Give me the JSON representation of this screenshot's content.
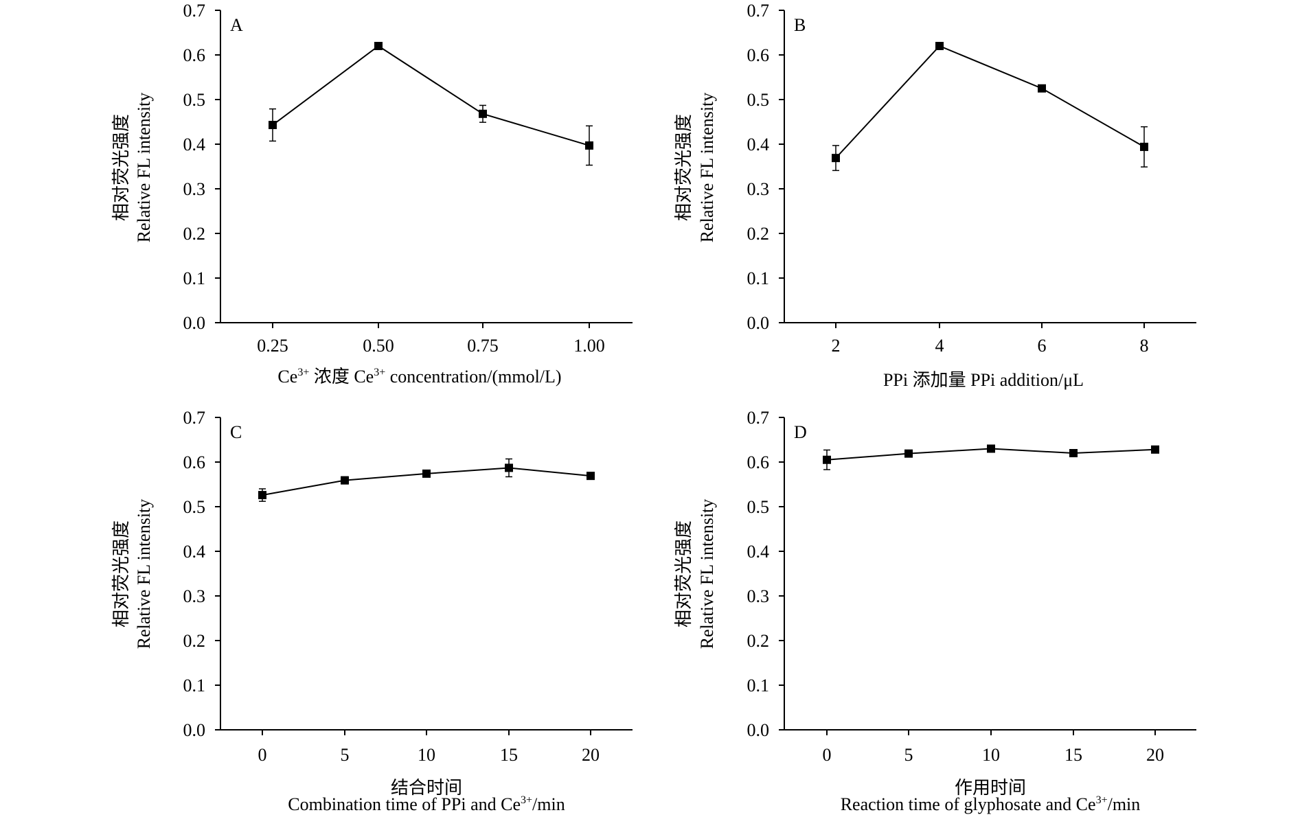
{
  "chart_data": [
    {
      "type": "line",
      "panel": "A",
      "categories": [
        "0.25",
        "0.50",
        "0.75",
        "1.00"
      ],
      "x": [
        0.25,
        0.5,
        0.75,
        1.0
      ],
      "values": [
        0.443,
        0.62,
        0.468,
        0.397
      ],
      "error": [
        0.036,
        0.0,
        0.019,
        0.044
      ],
      "ylim": [
        0,
        0.7
      ],
      "yticks": [
        "0.0",
        "0.1",
        "0.2",
        "0.3",
        "0.4",
        "0.5",
        "0.6",
        "0.7"
      ],
      "ylabel_cn": "相对荧光强度",
      "ylabel_en": "Relative FL intensity",
      "xlabel_parts": [
        "Ce",
        "3+",
        " 浓度 Ce",
        "3+",
        " concentration/(mmol/L)"
      ],
      "grid": false
    },
    {
      "type": "line",
      "panel": "B",
      "categories": [
        "2",
        "4",
        "6",
        "8"
      ],
      "x": [
        2,
        4,
        6,
        8
      ],
      "values": [
        0.369,
        0.62,
        0.525,
        0.394
      ],
      "error": [
        0.028,
        0.0,
        0.0,
        0.045
      ],
      "ylim": [
        0,
        0.7
      ],
      "yticks": [
        "0.0",
        "0.1",
        "0.2",
        "0.3",
        "0.4",
        "0.5",
        "0.6",
        "0.7"
      ],
      "ylabel_cn": "相对荧光强度",
      "ylabel_en": "Relative FL intensity",
      "xlabel": "PPi 添加量 PPi addition/μL",
      "grid": false
    },
    {
      "type": "line",
      "panel": "C",
      "categories": [
        "0",
        "5",
        "10",
        "15",
        "20"
      ],
      "x": [
        0,
        5,
        10,
        15,
        20
      ],
      "values": [
        0.526,
        0.559,
        0.574,
        0.587,
        0.569
      ],
      "error": [
        0.014,
        0.008,
        0.0,
        0.02,
        0.0
      ],
      "ylim": [
        0,
        0.7
      ],
      "yticks": [
        "0.0",
        "0.1",
        "0.2",
        "0.3",
        "0.4",
        "0.5",
        "0.6",
        "0.7"
      ],
      "ylabel_cn": "相对荧光强度",
      "ylabel_en": "Relative FL intensity",
      "xlabel_cn": "结合时间",
      "xlabel_parts": [
        "Combination time of PPi and Ce",
        "3+",
        "/min"
      ],
      "grid": false
    },
    {
      "type": "line",
      "panel": "D",
      "categories": [
        "0",
        "5",
        "10",
        "15",
        "20"
      ],
      "x": [
        0,
        5,
        10,
        15,
        20
      ],
      "values": [
        0.605,
        0.619,
        0.63,
        0.62,
        0.628
      ],
      "error": [
        0.022,
        0.0,
        0.0,
        0.0,
        0.0
      ],
      "ylim": [
        0,
        0.7
      ],
      "yticks": [
        "0.0",
        "0.1",
        "0.2",
        "0.3",
        "0.4",
        "0.5",
        "0.6",
        "0.7"
      ],
      "ylabel_cn": "相对荧光强度",
      "ylabel_en": "Relative FL intensity",
      "xlabel_cn": "作用时间",
      "xlabel_parts": [
        "Reaction time of glyphosate and Ce",
        "3+",
        "/min"
      ],
      "grid": false
    }
  ]
}
